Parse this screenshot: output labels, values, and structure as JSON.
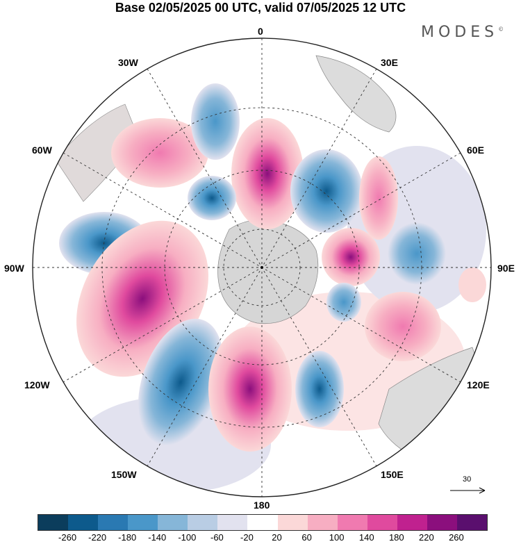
{
  "title": "Base 02/05/2025 00 UTC, valid 07/05/2025 12 UTC",
  "logo": "MODES",
  "logo_mark": "©",
  "meridian_labels": {
    "m0": "0",
    "m30e": "30E",
    "m60e": "60E",
    "m90e": "90E",
    "m120e": "120E",
    "m150e": "150E",
    "m180": "180",
    "m150w": "150W",
    "m120w": "120W",
    "m90w": "90W",
    "m60w": "60W",
    "m30w": "30W"
  },
  "reference_vector": "30",
  "colorbar": {
    "colors": [
      "#0b3d5c",
      "#0d5a8c",
      "#2a79b2",
      "#4a97c9",
      "#86b6d8",
      "#b9cde4",
      "#e2e2ef",
      "#ffffff",
      "#fbd8d8",
      "#f7aec2",
      "#f07ab0",
      "#e04a9e",
      "#c0218f",
      "#8b0f7d",
      "#5a0f6e"
    ],
    "labels": [
      "-260",
      "-220",
      "-180",
      "-140",
      "-100",
      "-60",
      "-20",
      "20",
      "60",
      "100",
      "140",
      "180",
      "220",
      "260"
    ]
  }
}
